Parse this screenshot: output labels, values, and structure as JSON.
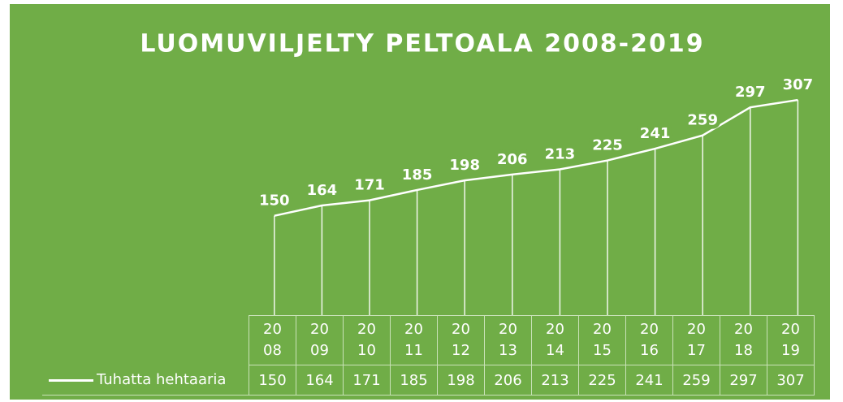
{
  "chart_data": {
    "type": "line",
    "title": "LUOMUVILJELTY  PELTOALA 2008-2019",
    "categories": [
      "2008",
      "2009",
      "2010",
      "2011",
      "2012",
      "2013",
      "2014",
      "2015",
      "2016",
      "2017",
      "2018",
      "2019"
    ],
    "series": [
      {
        "name": "Tuhatta hehtaaria",
        "color": "#ffffff",
        "values": [
          150,
          164,
          171,
          185,
          198,
          206,
          213,
          225,
          241,
          259,
          297,
          307
        ]
      }
    ],
    "ylim": [
      0,
      350
    ],
    "drop_lines": true,
    "data_table": true
  }
}
